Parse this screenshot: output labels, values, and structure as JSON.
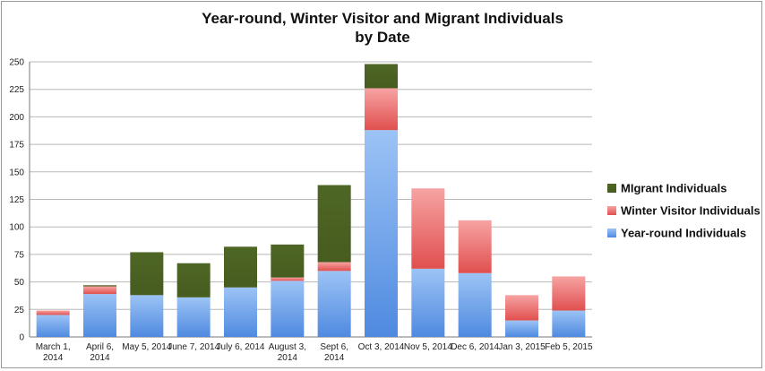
{
  "chart_data": {
    "type": "bar",
    "stacked": true,
    "title": [
      "Year-round, Winter Visitor and Migrant Individuals",
      "by Date"
    ],
    "xlabel": "",
    "ylabel": "",
    "ylim": [
      0,
      250
    ],
    "yticks": [
      0,
      25,
      50,
      75,
      100,
      125,
      150,
      175,
      200,
      225,
      250
    ],
    "grid": true,
    "legend_position": "right",
    "categories": [
      [
        "March 1,",
        "2014"
      ],
      [
        "April 6,",
        "2014"
      ],
      [
        "May 5, 2014"
      ],
      [
        "June 7, 2014"
      ],
      [
        "July 6, 2014"
      ],
      [
        "August 3,",
        "2014"
      ],
      [
        "Sept 6,",
        "2014"
      ],
      [
        "Oct 3, 2014"
      ],
      [
        "Nov 5, 2014"
      ],
      [
        "Dec 6, 2014"
      ],
      [
        "Jan 3, 2015"
      ],
      [
        "Feb 5, 2015"
      ]
    ],
    "series": [
      {
        "name": "Year-round Individuals",
        "color": "#6b9ee8",
        "values": [
          20,
          39,
          38,
          36,
          45,
          51,
          60,
          188,
          62,
          58,
          15,
          24
        ]
      },
      {
        "name": "Winter Visitor Individuals",
        "color": "#e85f5f",
        "values": [
          4,
          7,
          0,
          0,
          0,
          3,
          8,
          38,
          73,
          48,
          23,
          31
        ]
      },
      {
        "name": "MIgrant Individuals",
        "color": "#4b6122",
        "values": [
          0,
          1,
          39,
          31,
          37,
          30,
          70,
          22,
          0,
          0,
          0,
          0
        ]
      }
    ],
    "legend_order": [
      "MIgrant Individuals",
      "Winter Visitor Individuals",
      "Year-round Individuals"
    ]
  }
}
